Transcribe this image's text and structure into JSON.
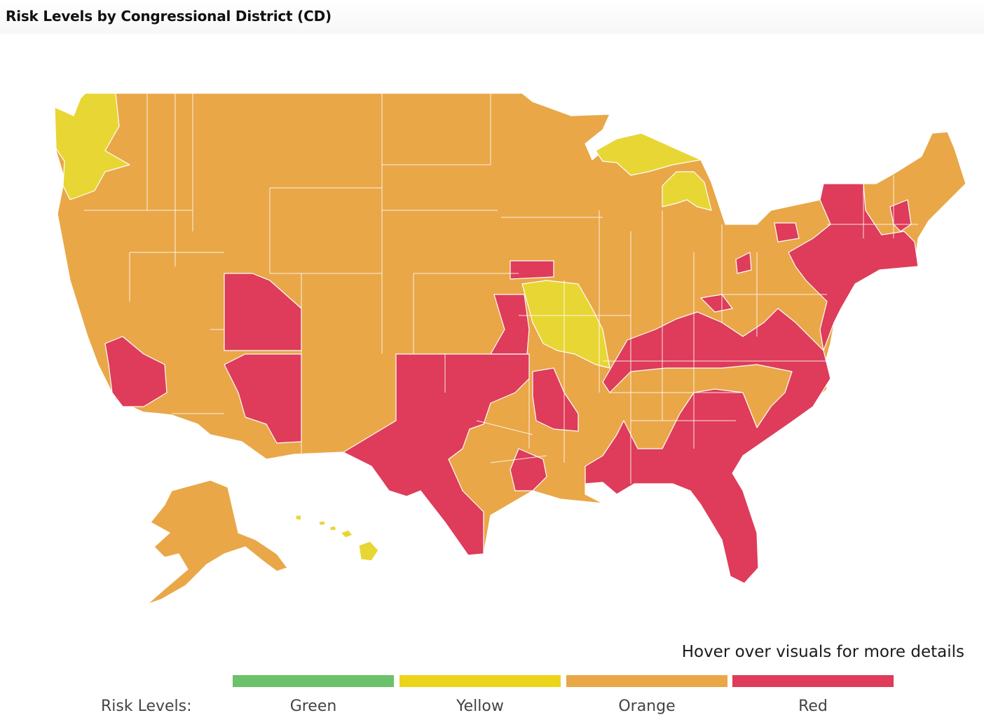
{
  "title": "Risk Levels by Congressional District (CD)",
  "hover_note": "Hover over visuals for more details",
  "legend": {
    "title": "Risk Levels:",
    "items": [
      {
        "label": "Green",
        "color": "#6cc16b"
      },
      {
        "label": "Yellow",
        "color": "#ecd41b"
      },
      {
        "label": "Orange",
        "color": "#e9a748"
      },
      {
        "label": "Red",
        "color": "#de3c5a"
      }
    ]
  },
  "map": {
    "type": "choropleth",
    "geography": "US congressional districts",
    "colors": {
      "orange": "#e9a748",
      "red": "#de3c5a",
      "yellow": "#e8d634",
      "green": "#6cc16b"
    }
  }
}
